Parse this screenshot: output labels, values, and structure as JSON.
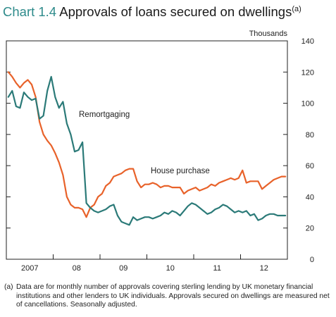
{
  "title": {
    "number": "Chart 1.4",
    "text": "Approvals of loans secured on dwellings",
    "note_marker": "(a)"
  },
  "unit_label": "Thousands",
  "footnote": {
    "marker": "(a)",
    "text": "Data are for monthly number of approvals covering sterling lending by UK monetary financial institutions and other lenders to UK individuals.  Approvals secured on dwellings are measured net of cancellations.  Seasonally adjusted."
  },
  "colors": {
    "house_purchase": "#e8622a",
    "remortgaging": "#2b7a78",
    "axis": "#222222"
  },
  "chart_data": {
    "type": "line",
    "title": "Approvals of loans secured on dwellings",
    "ylabel": "Thousands",
    "ylim": [
      0,
      140
    ],
    "yticks": [
      "0",
      "20",
      "40",
      "60",
      "80",
      "100",
      "120",
      "140"
    ],
    "xlim": [
      2007.0,
      2013.0
    ],
    "xtick_labels": [
      "2007",
      "08",
      "09",
      "10",
      "11",
      "12"
    ],
    "grid": false,
    "legend": "inline labels",
    "series": [
      {
        "name": "House purchase",
        "x": [
          "2007-01",
          "2007-02",
          "2007-03",
          "2007-04",
          "2007-05",
          "2007-06",
          "2007-07",
          "2007-08",
          "2007-09",
          "2007-10",
          "2007-11",
          "2007-12",
          "2008-01",
          "2008-02",
          "2008-03",
          "2008-04",
          "2008-05",
          "2008-06",
          "2008-07",
          "2008-08",
          "2008-09",
          "2008-10",
          "2008-11",
          "2008-12",
          "2009-01",
          "2009-02",
          "2009-03",
          "2009-04",
          "2009-05",
          "2009-06",
          "2009-07",
          "2009-08",
          "2009-09",
          "2009-10",
          "2009-11",
          "2009-12",
          "2010-01",
          "2010-02",
          "2010-03",
          "2010-04",
          "2010-05",
          "2010-06",
          "2010-07",
          "2010-08",
          "2010-09",
          "2010-10",
          "2010-11",
          "2010-12",
          "2011-01",
          "2011-02",
          "2011-03",
          "2011-04",
          "2011-05",
          "2011-06",
          "2011-07",
          "2011-08",
          "2011-09",
          "2011-10",
          "2011-11",
          "2011-12",
          "2012-01",
          "2012-02",
          "2012-03",
          "2012-04",
          "2012-05",
          "2012-06",
          "2012-07",
          "2012-08",
          "2012-09",
          "2012-10",
          "2012-11",
          "2012-12"
        ],
        "values": [
          120,
          117,
          113,
          110,
          113,
          115,
          112,
          104,
          88,
          80,
          76,
          73,
          68,
          62,
          54,
          40,
          35,
          33,
          33,
          32,
          27,
          33,
          35,
          40,
          42,
          47,
          49,
          53,
          54,
          55,
          57,
          58,
          58,
          50,
          46,
          48,
          48,
          49,
          48,
          46,
          47,
          47,
          46,
          46,
          46,
          42,
          44,
          45,
          46,
          44,
          45,
          46,
          48,
          47,
          49,
          50,
          51,
          52,
          51,
          52,
          57,
          49,
          50,
          50,
          50,
          45,
          47,
          49,
          51,
          52,
          53,
          53
        ]
      },
      {
        "name": "Remortgaging",
        "x": [
          "2007-01",
          "2007-02",
          "2007-03",
          "2007-04",
          "2007-05",
          "2007-06",
          "2007-07",
          "2007-08",
          "2007-09",
          "2007-10",
          "2007-11",
          "2007-12",
          "2008-01",
          "2008-02",
          "2008-03",
          "2008-04",
          "2008-05",
          "2008-06",
          "2008-07",
          "2008-08",
          "2008-09",
          "2008-10",
          "2008-11",
          "2008-12",
          "2009-01",
          "2009-02",
          "2009-03",
          "2009-04",
          "2009-05",
          "2009-06",
          "2009-07",
          "2009-08",
          "2009-09",
          "2009-10",
          "2009-11",
          "2009-12",
          "2010-01",
          "2010-02",
          "2010-03",
          "2010-04",
          "2010-05",
          "2010-06",
          "2010-07",
          "2010-08",
          "2010-09",
          "2010-10",
          "2010-11",
          "2010-12",
          "2011-01",
          "2011-02",
          "2011-03",
          "2011-04",
          "2011-05",
          "2011-06",
          "2011-07",
          "2011-08",
          "2011-09",
          "2011-10",
          "2011-11",
          "2011-12",
          "2012-01",
          "2012-02",
          "2012-03",
          "2012-04",
          "2012-05",
          "2012-06",
          "2012-07",
          "2012-08",
          "2012-09",
          "2012-10",
          "2012-11",
          "2012-12"
        ],
        "values": [
          104,
          108,
          98,
          97,
          107,
          104,
          102,
          103,
          90,
          92,
          108,
          117,
          104,
          97,
          101,
          87,
          80,
          69,
          70,
          75,
          36,
          33,
          31,
          30,
          31,
          32,
          34,
          35,
          28,
          24,
          23,
          22,
          27,
          25,
          26,
          27,
          27,
          26,
          27,
          28,
          30,
          29,
          31,
          30,
          28,
          31,
          34,
          36,
          35,
          33,
          31,
          29,
          30,
          32,
          33,
          35,
          34,
          32,
          30,
          31,
          30,
          31,
          28,
          29,
          25,
          26,
          28,
          29,
          29,
          28,
          28,
          28
        ]
      }
    ],
    "annotations": [
      {
        "text": "Remortgaging",
        "series": "Remortgaging"
      },
      {
        "text": "House purchase",
        "series": "House purchase"
      }
    ]
  }
}
